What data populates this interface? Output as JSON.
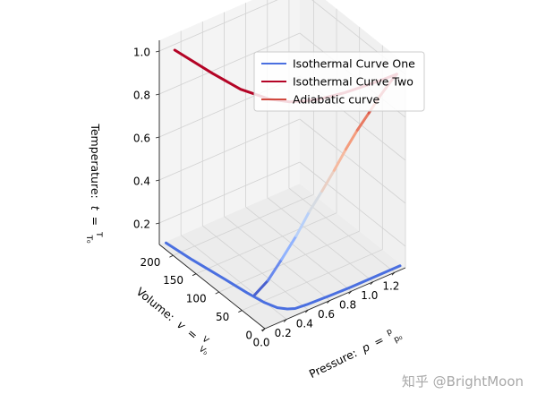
{
  "chart_data": {
    "type": "line",
    "projection": "3d",
    "xlabel_text": "Pressure:",
    "ylabel_text": "Volume:",
    "zlabel_text": "Temperature:",
    "xlabel_symbol": "p",
    "ylabel_symbol": "v",
    "zlabel_symbol": "t",
    "xlabel_frac": {
      "num": "p",
      "den": "p₀"
    },
    "ylabel_frac": {
      "num": "V",
      "den": "V₀"
    },
    "zlabel_frac": {
      "num": "T",
      "den": "T₀"
    },
    "xlim": [
      0.0,
      1.3
    ],
    "ylim": [
      0,
      230
    ],
    "zlim": [
      0.1,
      1.05
    ],
    "xticks": [
      0.0,
      0.2,
      0.4,
      0.6,
      0.8,
      1.0,
      1.2
    ],
    "xtick_labels": [
      "0.0",
      "0.2",
      "0.4",
      "0.6",
      "0.8",
      "1.0",
      "1.2"
    ],
    "yticks": [
      0,
      50,
      100,
      150,
      200
    ],
    "ytick_labels": [
      "0",
      "50",
      "100",
      "150",
      "200"
    ],
    "zticks": [
      0.2,
      0.4,
      0.6,
      0.8,
      1.0
    ],
    "ztick_labels": [
      "0.2",
      "0.4",
      "0.6",
      "0.8",
      "1.0"
    ],
    "grid": true,
    "legend_position": "top-right",
    "series": [
      {
        "name": "Isothermal Curve One",
        "color": "#4a6fe0",
        "x": [
          1.25,
          1.0,
          0.8,
          0.6,
          0.4,
          0.3,
          0.25,
          0.2,
          0.16,
          0.13,
          0.1,
          0.05,
          0.02
        ],
        "y": [
          0,
          0,
          0,
          1,
          3,
          5,
          10,
          20,
          40,
          70,
          110,
          170,
          220
        ],
        "z": [
          0.12,
          0.12,
          0.12,
          0.12,
          0.12,
          0.12,
          0.12,
          0.12,
          0.12,
          0.12,
          0.12,
          0.12,
          0.12
        ]
      },
      {
        "name": "Isothermal Curve Two",
        "color": "#b40426",
        "x": [
          0.1,
          0.15,
          0.2,
          0.3,
          0.4,
          0.5,
          0.6,
          0.8,
          1.0,
          1.15,
          1.25
        ],
        "y": [
          220,
          150,
          100,
          60,
          40,
          30,
          22,
          14,
          10,
          8,
          7
        ],
        "z": [
          1.0,
          1.0,
          1.0,
          1.0,
          1.0,
          1.0,
          1.0,
          1.0,
          1.0,
          1.0,
          1.0
        ]
      },
      {
        "name": "Adiabatic curve",
        "color": "#d1493f",
        "colormap": "coolwarm",
        "x": [
          0.16,
          0.22,
          0.3,
          0.4,
          0.5,
          0.6,
          0.7,
          0.8,
          0.9,
          1.0,
          1.1,
          1.2,
          1.25
        ],
        "y": [
          60,
          45,
          34,
          26,
          21,
          17,
          14,
          12,
          10.5,
          9,
          8,
          7.2,
          7
        ],
        "z": [
          0.12,
          0.2,
          0.3,
          0.4,
          0.5,
          0.58,
          0.66,
          0.74,
          0.81,
          0.87,
          0.93,
          0.98,
          1.0
        ]
      }
    ]
  },
  "watermark": "知乎 @BrightMoon"
}
